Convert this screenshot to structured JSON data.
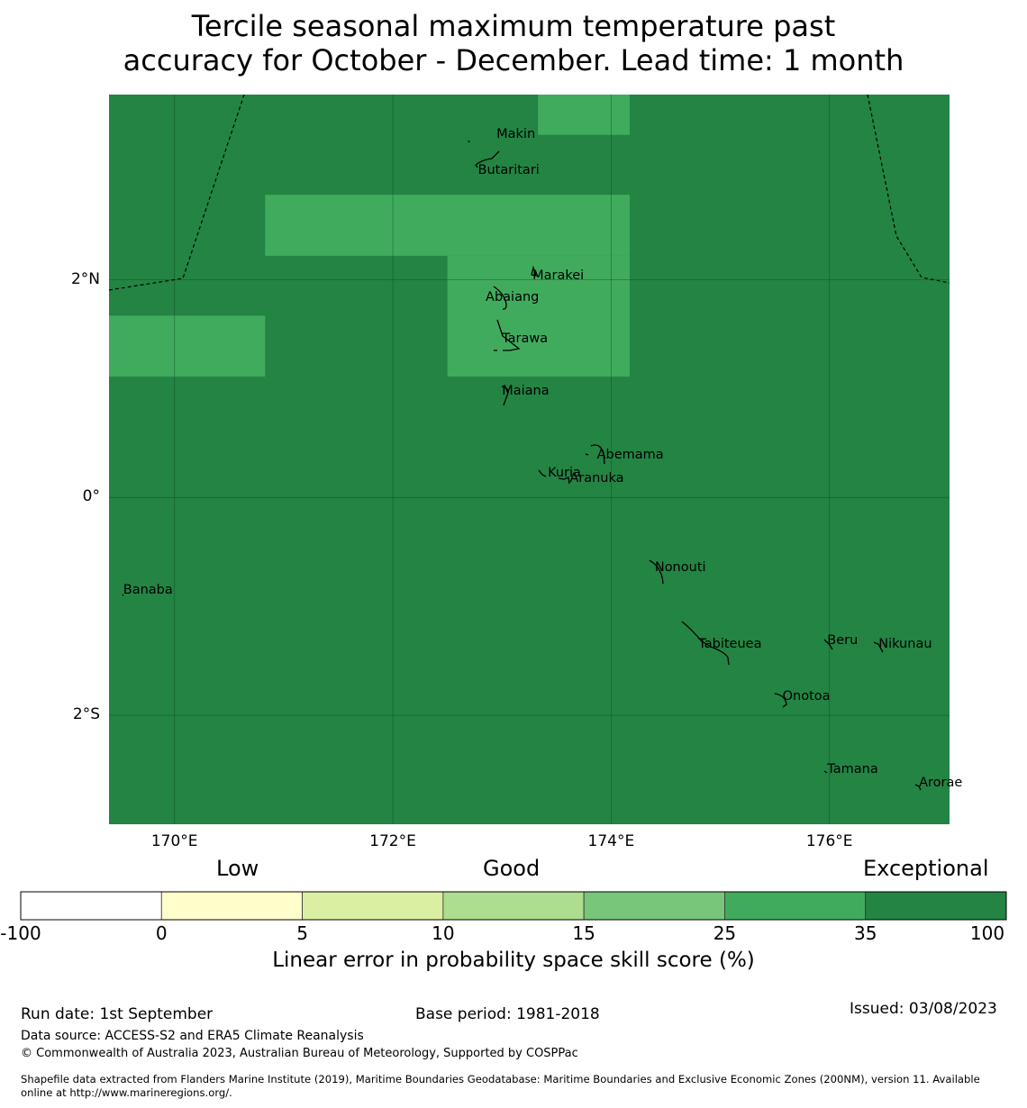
{
  "title": {
    "line1": "Tercile seasonal maximum temperature past",
    "line2": "accuracy for October - December. Lead time: 1 month"
  },
  "map": {
    "lon_range": [
      169.4,
      177.1
    ],
    "lat_range": [
      -3.0,
      3.7
    ],
    "base_color": "#238443",
    "cell_color": "#41ab5d",
    "lat_ticks": [
      {
        "value": 2,
        "label": "2°N"
      },
      {
        "value": 0,
        "label": "0°"
      },
      {
        "value": -2,
        "label": "2°S"
      }
    ],
    "lon_ticks": [
      {
        "value": 170,
        "label": "170°E"
      },
      {
        "value": 172,
        "label": "172°E"
      },
      {
        "value": 174,
        "label": "174°E"
      },
      {
        "value": 176,
        "label": "176°E"
      }
    ],
    "places": [
      {
        "name": "Makin",
        "lon": 172.95,
        "lat": 3.33
      },
      {
        "name": "Butaritari",
        "lon": 172.78,
        "lat": 3.0
      },
      {
        "name": "Marakei",
        "lon": 173.28,
        "lat": 2.03
      },
      {
        "name": "Abaiang",
        "lon": 172.85,
        "lat": 1.83
      },
      {
        "name": "Tarawa",
        "lon": 173.0,
        "lat": 1.45
      },
      {
        "name": "Maiana",
        "lon": 173.0,
        "lat": 0.97
      },
      {
        "name": "Abemama",
        "lon": 173.87,
        "lat": 0.38
      },
      {
        "name": "Kuria",
        "lon": 173.42,
        "lat": 0.22
      },
      {
        "name": "Aranuka",
        "lon": 173.62,
        "lat": 0.17
      },
      {
        "name": "Banaba",
        "lon": 169.53,
        "lat": -0.86
      },
      {
        "name": "Nonouti",
        "lon": 174.4,
        "lat": -0.65
      },
      {
        "name": "Beru",
        "lon": 175.98,
        "lat": -1.32
      },
      {
        "name": "Nikunau",
        "lon": 176.45,
        "lat": -1.35
      },
      {
        "name": "Tabiteuea",
        "lon": 174.8,
        "lat": -1.35
      },
      {
        "name": "Onotoa",
        "lon": 175.57,
        "lat": -1.83
      },
      {
        "name": "Tamana",
        "lon": 175.98,
        "lat": -2.5
      },
      {
        "name": "Arorae",
        "lon": 176.82,
        "lat": -2.63
      }
    ],
    "high_skill_cells": [
      {
        "lon_min": 173.33,
        "lon_max": 174.17,
        "lat_min": 3.33,
        "lat_max": 3.7
      },
      {
        "lon_min": 170.83,
        "lon_max": 174.17,
        "lat_min": 2.22,
        "lat_max": 2.78
      },
      {
        "lon_min": 172.5,
        "lon_max": 174.17,
        "lat_min": 1.11,
        "lat_max": 2.22
      },
      {
        "lon_min": 169.4,
        "lon_max": 170.83,
        "lat_min": 1.11,
        "lat_max": 1.67
      }
    ]
  },
  "colorbar": {
    "categories": [
      "Low",
      "Good",
      "Exceptional"
    ],
    "bins": [
      {
        "from": -100,
        "to": 0,
        "color": "#ffffff"
      },
      {
        "from": 0,
        "to": 5,
        "color": "#ffffcc"
      },
      {
        "from": 5,
        "to": 10,
        "color": "#d9f0a3"
      },
      {
        "from": 10,
        "to": 15,
        "color": "#addd8e"
      },
      {
        "from": 15,
        "to": 25,
        "color": "#78c679"
      },
      {
        "from": 25,
        "to": 35,
        "color": "#41ab5d"
      },
      {
        "from": 35,
        "to": 100,
        "color": "#238443"
      }
    ],
    "ticks": [
      "-100",
      "0",
      "5",
      "10",
      "15",
      "25",
      "35",
      "100"
    ],
    "label": "Linear error in probability space skill score (%)"
  },
  "footer": {
    "run_date": "Run date: 1st September",
    "base_period": "Base period: 1981-2018",
    "issued": "Issued: 03/08/2023",
    "data_source": "Data source: ACCESS-S2 and ERA5 Climate Reanalysis",
    "copyright": "© Commonwealth of Australia 2023, Australian Bureau of Meteorology, Supported by COSPPac",
    "shapefile_line1": "Shapefile data extracted from Flanders Marine Institute (2019), Maritime Boundaries Geodatabase: Maritime Boundaries and Exclusive Economic Zones (200NM), version 11. Available",
    "shapefile_line2": "online at http://www.marineregions.org/."
  }
}
